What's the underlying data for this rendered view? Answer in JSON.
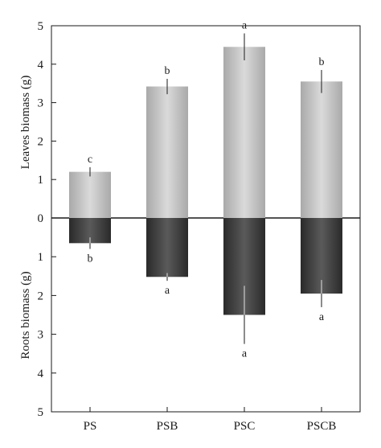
{
  "chart_data": {
    "type": "bar",
    "categories": [
      "PS",
      "PSB",
      "PSC",
      "PSCB"
    ],
    "ylabel_top": "Leaves biomass (g)",
    "ylabel_bottom": "Roots biomass (g)",
    "ylim_top": [
      0,
      5
    ],
    "ylim_bottom": [
      0,
      5
    ],
    "yticks_top": [
      "0",
      "1",
      "2",
      "3",
      "4",
      "5"
    ],
    "yticks_bottom": [
      "1",
      "2",
      "3",
      "4",
      "5"
    ],
    "series": [
      {
        "values": [
          1.2,
          3.42,
          4.45,
          3.55
        ],
        "errors": [
          0.12,
          0.2,
          0.35,
          0.3
        ],
        "significance": [
          "c",
          "b",
          "a",
          "b"
        ],
        "color": "#c4c4c4"
      },
      {
        "values": [
          0.65,
          1.52,
          2.5,
          1.95
        ],
        "errors": [
          0.15,
          0.1,
          0.75,
          0.35
        ],
        "significance": [
          "b",
          "a",
          "a",
          "a"
        ],
        "color": "#3a3a3a"
      }
    ]
  }
}
